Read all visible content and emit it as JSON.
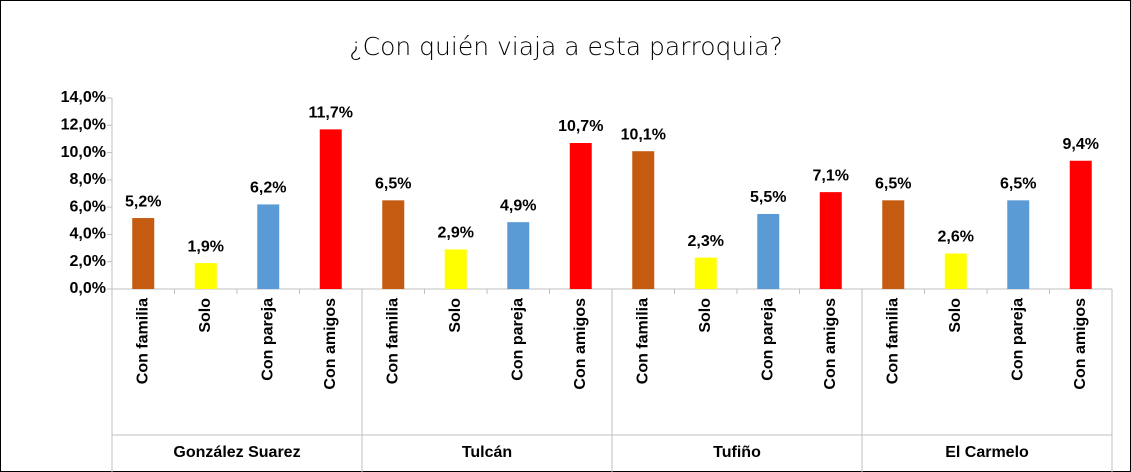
{
  "chart_data": {
    "type": "bar",
    "title": "¿Con quién viaja a esta parroquia?",
    "categories": [
      "González Suarez",
      "Tulcán",
      "Tufiño",
      "El Carmelo"
    ],
    "series": [
      {
        "name": "Con familia",
        "color": "#c55a11",
        "values": [
          5.2,
          6.5,
          10.1,
          6.5
        ],
        "value_labels": [
          "5,2%",
          "6,5%",
          "10,1%",
          "6,5%"
        ]
      },
      {
        "name": "Solo",
        "color": "#ffff00",
        "values": [
          1.9,
          2.9,
          2.3,
          2.6
        ],
        "value_labels": [
          "1,9%",
          "2,9%",
          "2,3%",
          "2,6%"
        ]
      },
      {
        "name": "Con pareja",
        "color": "#5b9bd5",
        "values": [
          6.2,
          4.9,
          5.5,
          6.5
        ],
        "value_labels": [
          "6,2%",
          "4,9%",
          "5,5%",
          "6,5%"
        ]
      },
      {
        "name": "Con amigos",
        "color": "#ff0000",
        "values": [
          11.7,
          10.7,
          7.1,
          9.4
        ],
        "value_labels": [
          "11,7%",
          "10,7%",
          "7,1%",
          "9,4%"
        ]
      }
    ],
    "ylim": [
      0,
      14
    ],
    "yticks": [
      {
        "value": 0,
        "label": "0,0%"
      },
      {
        "value": 2,
        "label": "2,0%"
      },
      {
        "value": 4,
        "label": "4,0%"
      },
      {
        "value": 6,
        "label": "6,0%"
      },
      {
        "value": 8,
        "label": "8,0%"
      },
      {
        "value": 10,
        "label": "10,0%"
      },
      {
        "value": 12,
        "label": "12,0%"
      },
      {
        "value": 14,
        "label": "14,0%"
      }
    ],
    "grid": false
  }
}
